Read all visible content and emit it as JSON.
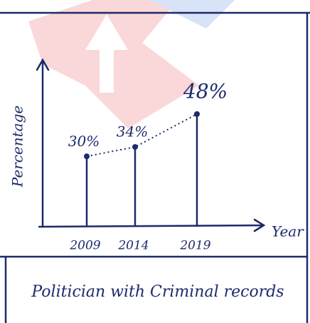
{
  "chart_data": {
    "type": "lollipop",
    "title": "Politician with Criminal records",
    "x_label": "Year",
    "y_label": "Percentage",
    "categories": [
      "2009",
      "2014",
      "2019"
    ],
    "values": [
      30,
      34,
      48
    ],
    "value_labels": [
      "30%",
      "34%",
      "48%"
    ],
    "color": "#1d2a6b"
  }
}
